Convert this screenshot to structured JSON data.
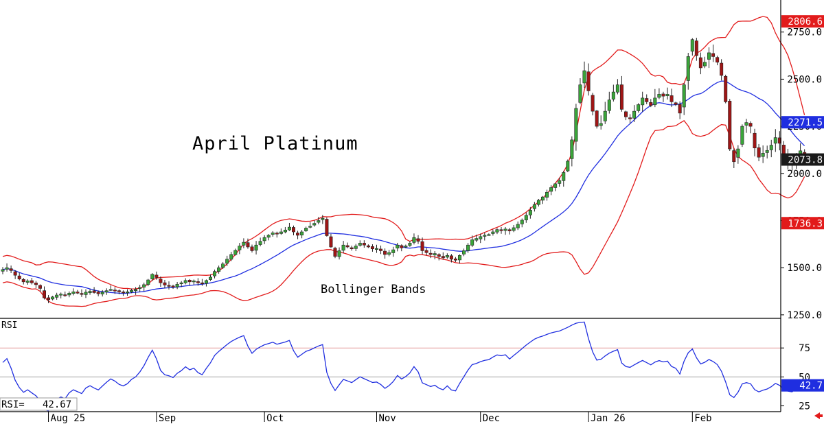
{
  "chart_data": [
    {
      "type": "candlestick",
      "title": "April Platinum",
      "annotation": "Bollinger Bands",
      "y_ticks": [
        1250,
        1500,
        1750,
        2000,
        2250,
        2500,
        2750
      ],
      "y_tick_labels": [
        "1250.0",
        "1500.0",
        "1750.0",
        "2000.0",
        "2250.0",
        "2500.0",
        "2750.0"
      ],
      "ylim": [
        1235,
        2920
      ],
      "x_labels": [
        "Aug 25",
        "Sep",
        "Oct",
        "Nov",
        "Dec",
        "Jan 26",
        "Feb"
      ],
      "x_label_bar_index": [
        11,
        37,
        63,
        90,
        115,
        141,
        166
      ],
      "markers": [
        {
          "label": "2806.6",
          "value": 2806.6,
          "color": "#e21b1b"
        },
        {
          "label": "2271.5",
          "value": 2271.5,
          "color": "#1f2ee0"
        },
        {
          "label": "2073.8",
          "value": 2073.8,
          "color": "#1a1a1a"
        },
        {
          "label": "1736.3",
          "value": 1736.3,
          "color": "#e21b1b"
        }
      ],
      "series": [
        {
          "kind": "ohlc",
          "close": [
            1490,
            1500,
            1485,
            1460,
            1440,
            1425,
            1430,
            1420,
            1410,
            1390,
            1340,
            1330,
            1345,
            1355,
            1360,
            1352,
            1365,
            1372,
            1365,
            1358,
            1370,
            1375,
            1368,
            1362,
            1370,
            1378,
            1385,
            1380,
            1372,
            1368,
            1372,
            1380,
            1385,
            1395,
            1410,
            1435,
            1465,
            1448,
            1420,
            1408,
            1405,
            1400,
            1412,
            1420,
            1432,
            1425,
            1430,
            1420,
            1415,
            1432,
            1450,
            1480,
            1500,
            1520,
            1545,
            1570,
            1592,
            1615,
            1635,
            1610,
            1590,
            1620,
            1640,
            1660,
            1672,
            1685,
            1680,
            1690,
            1700,
            1715,
            1690,
            1672,
            1690,
            1710,
            1720,
            1735,
            1750,
            1762,
            1670,
            1610,
            1560,
            1590,
            1620,
            1610,
            1600,
            1615,
            1630,
            1620,
            1610,
            1600,
            1602,
            1590,
            1570,
            1580,
            1595,
            1620,
            1605,
            1615,
            1630,
            1660,
            1640,
            1590,
            1580,
            1570,
            1575,
            1560,
            1552,
            1565,
            1545,
            1540,
            1565,
            1590,
            1620,
            1648,
            1655,
            1665,
            1672,
            1676,
            1690,
            1702,
            1700,
            1705,
            1695,
            1712,
            1730,
            1752,
            1778,
            1805,
            1835,
            1858,
            1875,
            1900,
            1925,
            1945,
            1962,
            2005,
            2065,
            2178,
            2345,
            2470,
            2545,
            2438,
            2330,
            2250,
            2265,
            2330,
            2390,
            2432,
            2470,
            2340,
            2300,
            2292,
            2330,
            2365,
            2400,
            2380,
            2360,
            2400,
            2420,
            2410,
            2420,
            2380,
            2366,
            2320,
            2470,
            2620,
            2710,
            2625,
            2560,
            2590,
            2640,
            2620,
            2590,
            2520,
            2380,
            2130,
            2062,
            2130,
            2250,
            2270,
            2250,
            2135,
            2086,
            2107,
            2122,
            2150,
            2190,
            2160,
            2098,
            2065,
            2052,
            2092,
            2120,
            2080
          ],
          "note": "close prices (data units) estimated from candle bodies"
        }
      ]
    },
    {
      "type": "line",
      "title": "RSI",
      "current_label": "RSI=",
      "current_value": "42.67",
      "y_ticks": [
        25,
        50,
        75
      ],
      "y_tick_labels": [
        "25",
        "50",
        "75"
      ],
      "ylim": [
        20,
        100
      ],
      "reference_lines": [
        50,
        75
      ],
      "marker": {
        "label": "42.7",
        "value": 42.7,
        "color": "#1f2ee0"
      }
    }
  ],
  "colors": {
    "up_candle": "#3aa53a",
    "down_candle": "#a01616",
    "bollinger_band": "#e21b1b",
    "moving_average": "#1f2ee0",
    "rsi_line": "#1f2ee0",
    "axis": "#000000",
    "arrow": "#e21b1b"
  }
}
